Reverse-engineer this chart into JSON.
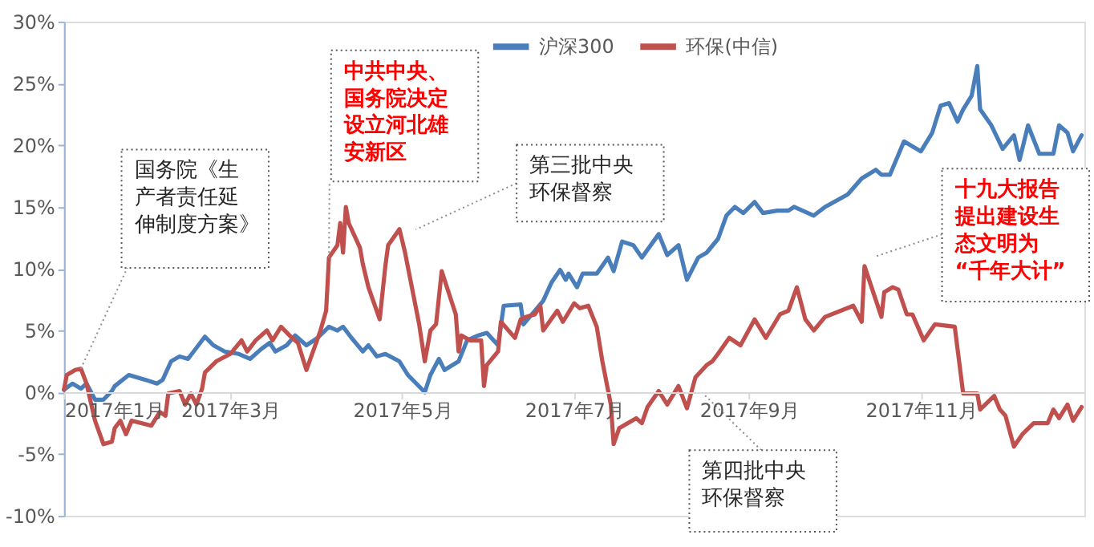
{
  "chart_data": {
    "type": "line",
    "ylim": [
      -10,
      30
    ],
    "yticks": [
      {
        "value": -10,
        "label": "-10%"
      },
      {
        "value": -5,
        "label": "-5%"
      },
      {
        "value": 0,
        "label": "0%"
      },
      {
        "value": 5,
        "label": "5%"
      },
      {
        "value": 10,
        "label": "10%"
      },
      {
        "value": 15,
        "label": "15%"
      },
      {
        "value": 20,
        "label": "20%"
      },
      {
        "value": 25,
        "label": "25%"
      },
      {
        "value": 30,
        "label": "30%"
      }
    ],
    "xlim": [
      "2017-01-01",
      "2017-12-29"
    ],
    "xticks": [
      {
        "value": "2017-01-01",
        "label": "2017年1月"
      },
      {
        "value": "2017-03-01",
        "label": "2017年3月"
      },
      {
        "value": "2017-05-01",
        "label": "2017年5月"
      },
      {
        "value": "2017-07-01",
        "label": "2017年7月"
      },
      {
        "value": "2017-09-01",
        "label": "2017年9月"
      },
      {
        "value": "2017-11-01",
        "label": "2017年11月"
      }
    ],
    "grid": false,
    "legend": "top",
    "marker": "none",
    "line_style": "solid",
    "series": [
      {
        "name": "沪深300",
        "color": "#4a7ebb",
        "x": [
          "2017-01-01",
          "2017-01-04",
          "2017-01-07",
          "2017-01-09",
          "2017-01-12",
          "2017-01-15",
          "2017-01-18",
          "2017-01-19",
          "2017-01-24",
          "2017-01-30",
          "2017-02-03",
          "2017-02-05",
          "2017-02-08",
          "2017-02-11",
          "2017-02-14",
          "2017-02-16",
          "2017-02-20",
          "2017-02-23",
          "2017-02-27",
          "2017-03-04",
          "2017-03-08",
          "2017-03-12",
          "2017-03-15",
          "2017-03-17",
          "2017-03-21",
          "2017-03-24",
          "2017-03-28",
          "2017-04-01",
          "2017-04-05",
          "2017-04-08",
          "2017-04-10",
          "2017-04-13",
          "2017-04-17",
          "2017-04-19",
          "2017-04-22",
          "2017-04-25",
          "2017-04-30",
          "2017-05-03",
          "2017-05-06",
          "2017-05-09",
          "2017-05-11",
          "2017-05-14",
          "2017-05-16",
          "2017-05-21",
          "2017-05-24",
          "2017-05-28",
          "2017-05-31",
          "2017-06-04",
          "2017-06-06",
          "2017-06-12",
          "2017-06-13",
          "2017-06-20",
          "2017-06-23",
          "2017-06-26",
          "2017-06-28",
          "2017-06-29",
          "2017-07-02",
          "2017-07-04",
          "2017-07-09",
          "2017-07-13",
          "2017-07-15",
          "2017-07-18",
          "2017-07-22",
          "2017-07-25",
          "2017-07-31",
          "2017-08-03",
          "2017-08-07",
          "2017-08-10",
          "2017-08-14",
          "2017-08-17",
          "2017-08-21",
          "2017-08-24",
          "2017-08-27",
          "2017-08-30",
          "2017-09-03",
          "2017-09-06",
          "2017-09-11",
          "2017-09-15",
          "2017-09-17",
          "2017-09-20",
          "2017-09-24",
          "2017-09-28",
          "2017-10-06",
          "2017-10-11",
          "2017-10-16",
          "2017-10-18",
          "2017-10-21",
          "2017-10-26",
          "2017-11-01",
          "2017-11-05",
          "2017-11-08",
          "2017-11-11",
          "2017-11-14",
          "2017-11-16",
          "2017-11-19",
          "2017-11-21",
          "2017-11-22",
          "2017-11-26",
          "2017-11-30",
          "2017-12-04",
          "2017-12-06",
          "2017-12-09",
          "2017-12-13",
          "2017-12-18",
          "2017-12-20",
          "2017-12-23",
          "2017-12-25",
          "2017-12-28"
        ],
        "values": [
          0.2,
          0.7,
          0.3,
          0.7,
          -0.6,
          -0.6,
          0.1,
          0.5,
          1.4,
          1.0,
          0.7,
          1.0,
          2.5,
          2.9,
          2.7,
          3.3,
          4.5,
          3.8,
          3.3,
          3.1,
          2.7,
          3.5,
          4.0,
          3.3,
          3.8,
          4.6,
          3.8,
          4.4,
          5.3,
          5.0,
          5.3,
          4.4,
          3.3,
          3.8,
          2.9,
          3.1,
          2.5,
          1.4,
          0.7,
          0.0,
          1.4,
          2.7,
          1.8,
          2.5,
          4.2,
          4.6,
          4.8,
          3.8,
          7.0,
          7.1,
          5.5,
          7.4,
          8.9,
          9.9,
          9.1,
          9.6,
          8.5,
          9.6,
          9.6,
          10.9,
          9.8,
          12.2,
          11.9,
          10.9,
          12.8,
          11.1,
          11.9,
          9.1,
          10.9,
          11.3,
          12.4,
          14.3,
          15.0,
          14.5,
          15.4,
          14.5,
          14.7,
          14.7,
          15.0,
          14.7,
          14.3,
          15.0,
          16.0,
          17.3,
          18.0,
          17.6,
          17.6,
          20.3,
          19.5,
          21.0,
          23.2,
          23.4,
          21.9,
          22.9,
          24.0,
          26.4,
          22.9,
          21.6,
          19.7,
          20.8,
          18.8,
          21.6,
          19.3,
          19.3,
          21.6,
          21.0,
          19.5,
          20.8
        ]
      },
      {
        "name": "环保(中信)",
        "color": "#c0504d",
        "x": [
          "2017-01-01",
          "2017-01-02",
          "2017-01-05",
          "2017-01-07",
          "2017-01-09",
          "2017-01-12",
          "2017-01-15",
          "2017-01-18",
          "2017-01-19",
          "2017-01-21",
          "2017-01-23",
          "2017-01-25",
          "2017-02-01",
          "2017-02-04",
          "2017-02-06",
          "2017-02-07",
          "2017-02-11",
          "2017-02-13",
          "2017-02-15",
          "2017-02-17",
          "2017-02-19",
          "2017-02-20",
          "2017-02-24",
          "2017-03-01",
          "2017-03-05",
          "2017-03-07",
          "2017-03-10",
          "2017-03-14",
          "2017-03-16",
          "2017-03-19",
          "2017-03-22",
          "2017-03-25",
          "2017-03-28",
          "2017-04-02",
          "2017-04-04",
          "2017-04-05",
          "2017-04-08",
          "2017-04-09",
          "2017-04-10",
          "2017-04-11",
          "2017-04-12",
          "2017-04-16",
          "2017-04-17",
          "2017-04-19",
          "2017-04-23",
          "2017-04-25",
          "2017-04-26",
          "2017-04-30",
          "2017-05-02",
          "2017-05-07",
          "2017-05-09",
          "2017-05-11",
          "2017-05-13",
          "2017-05-15",
          "2017-05-20",
          "2017-05-21",
          "2017-05-22",
          "2017-05-25",
          "2017-05-29",
          "2017-05-30",
          "2017-05-31",
          "2017-06-04",
          "2017-06-05",
          "2017-06-10",
          "2017-06-12",
          "2017-06-14",
          "2017-06-17",
          "2017-06-19",
          "2017-06-20",
          "2017-06-25",
          "2017-06-27",
          "2017-07-01",
          "2017-07-03",
          "2017-07-06",
          "2017-07-09",
          "2017-07-11",
          "2017-07-14",
          "2017-07-15",
          "2017-07-17",
          "2017-07-23",
          "2017-07-25",
          "2017-07-27",
          "2017-07-31",
          "2017-08-03",
          "2017-08-07",
          "2017-08-10",
          "2017-08-13",
          "2017-08-17",
          "2017-08-19",
          "2017-08-21",
          "2017-08-25",
          "2017-08-29",
          "2017-09-03",
          "2017-09-07",
          "2017-09-12",
          "2017-09-15",
          "2017-09-18",
          "2017-09-21",
          "2017-09-24",
          "2017-09-28",
          "2017-10-08",
          "2017-10-11",
          "2017-10-12",
          "2017-10-18",
          "2017-10-19",
          "2017-10-22",
          "2017-10-24",
          "2017-10-27",
          "2017-10-29",
          "2017-11-02",
          "2017-11-06",
          "2017-11-13",
          "2017-11-16",
          "2017-11-21",
          "2017-11-22",
          "2017-11-27",
          "2017-11-29",
          "2017-12-01",
          "2017-12-04",
          "2017-12-07",
          "2017-12-11",
          "2017-12-16",
          "2017-12-18",
          "2017-12-20",
          "2017-12-23",
          "2017-12-25",
          "2017-12-28"
        ],
        "values": [
          0.2,
          1.4,
          1.8,
          1.9,
          0.7,
          -2.3,
          -4.2,
          -4.0,
          -2.9,
          -2.3,
          -3.4,
          -2.3,
          -2.7,
          -1.6,
          -1.9,
          -0.1,
          0.1,
          -1.0,
          -0.1,
          -1.0,
          0.3,
          1.6,
          2.5,
          3.1,
          4.2,
          3.3,
          4.2,
          5.0,
          4.2,
          5.3,
          4.6,
          4.0,
          1.8,
          5.0,
          6.6,
          10.9,
          11.9,
          13.7,
          11.3,
          15.0,
          13.7,
          11.7,
          10.4,
          8.5,
          5.9,
          10.2,
          11.9,
          13.2,
          11.3,
          5.5,
          2.5,
          5.0,
          5.5,
          9.8,
          6.3,
          3.3,
          4.6,
          4.2,
          4.2,
          0.5,
          2.2,
          3.3,
          5.7,
          4.4,
          5.9,
          6.1,
          6.3,
          7.0,
          5.0,
          6.6,
          5.7,
          7.2,
          6.8,
          7.0,
          5.3,
          2.5,
          -1.0,
          -4.2,
          -2.9,
          -2.1,
          -2.5,
          -1.2,
          0.1,
          -1.0,
          0.5,
          -1.3,
          1.2,
          2.2,
          2.5,
          3.1,
          4.4,
          3.8,
          5.9,
          4.4,
          6.3,
          6.6,
          8.5,
          5.9,
          5.0,
          6.1,
          7.0,
          5.7,
          10.2,
          6.1,
          8.1,
          8.5,
          8.3,
          6.3,
          6.3,
          4.2,
          5.5,
          5.3,
          -0.1,
          -0.1,
          -1.4,
          -0.3,
          -1.4,
          -1.9,
          -4.4,
          -3.4,
          -2.5,
          -2.5,
          -1.4,
          -2.1,
          -1.0,
          -2.3,
          -1.2
        ]
      }
    ],
    "annotations": [
      {
        "text": "国务院《生产者责任延伸制度方案》",
        "x": "2017-01-07",
        "y": 1.9
      },
      {
        "text": "中共中央、国务院决定设立河北雄安新区",
        "x": "2017-04-05",
        "y": 10.9
      },
      "第三批中央环保督察",
      "第四批中央环保督察",
      "十九大报告提出建设生态文明为“千年大计”"
    ]
  }
}
